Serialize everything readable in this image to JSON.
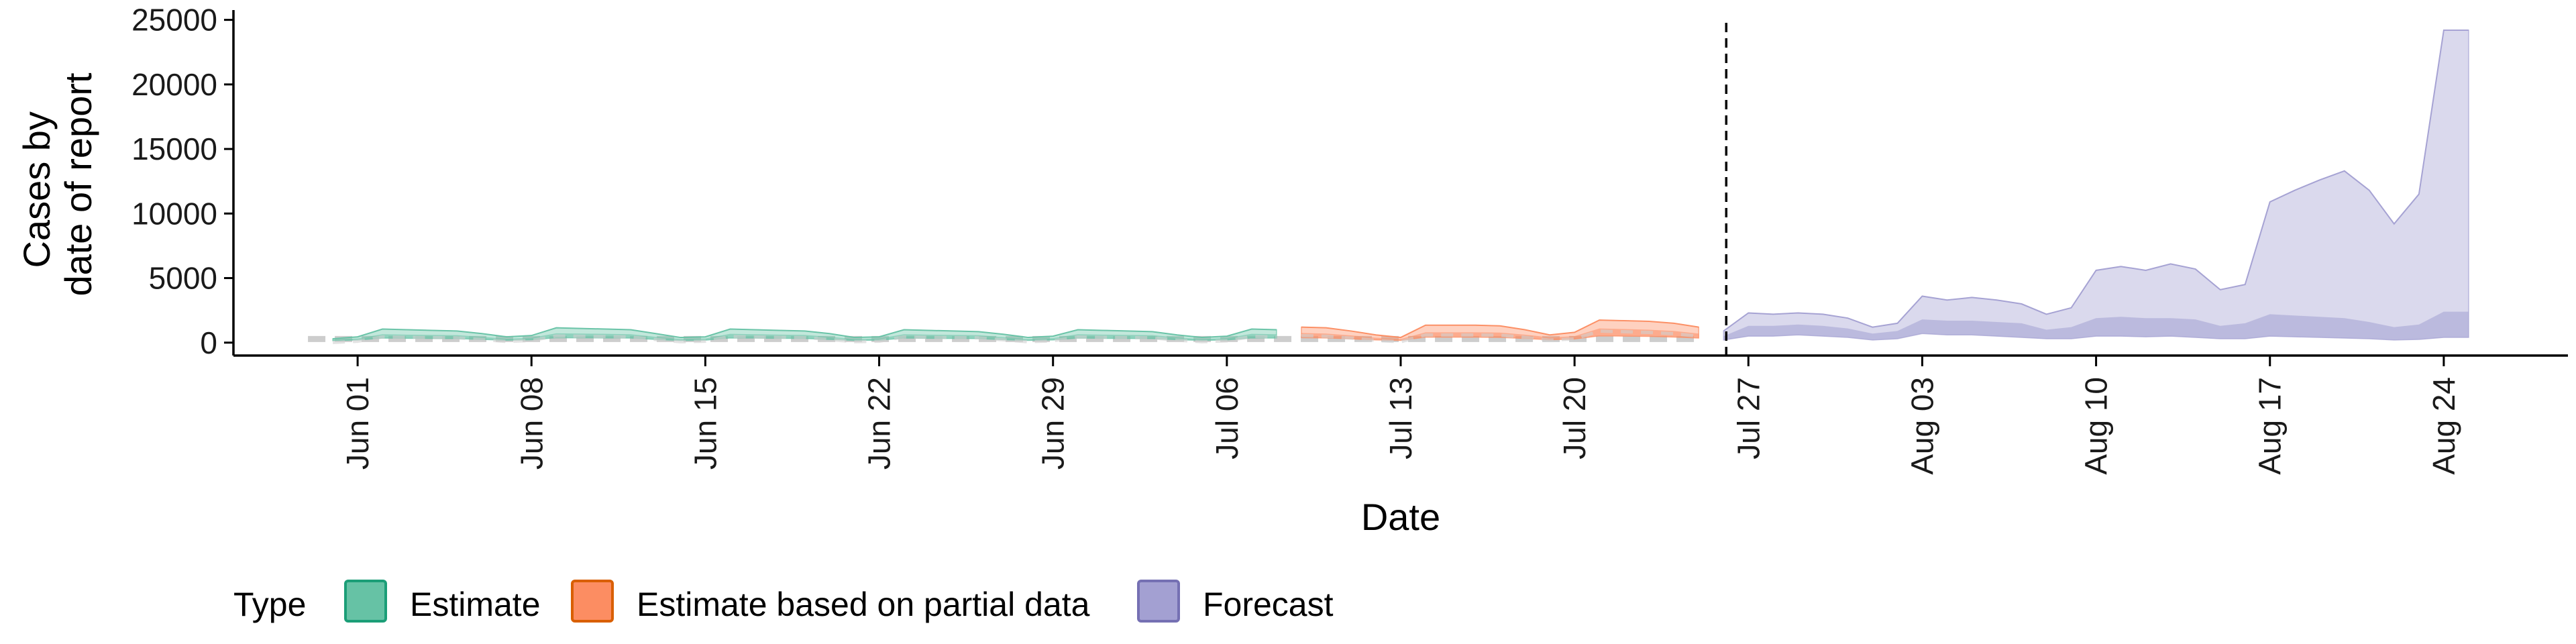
{
  "chart_data": {
    "type": "area",
    "xlabel": "Date",
    "ylabel_lines": [
      "Cases by",
      "date of report"
    ],
    "ylim": [
      -1000,
      25500
    ],
    "xlim": [
      "2020-05-27",
      "2020-08-29"
    ],
    "y_ticks": [
      0,
      5000,
      10000,
      15000,
      20000,
      25000
    ],
    "y_tick_labels": [
      "0",
      "5000",
      "10000",
      "15000",
      "20000",
      "25000"
    ],
    "x_ticks": [
      "2020-06-01",
      "2020-06-08",
      "2020-06-15",
      "2020-06-22",
      "2020-06-29",
      "2020-07-06",
      "2020-07-13",
      "2020-07-20",
      "2020-07-27",
      "2020-08-03",
      "2020-08-10",
      "2020-08-17",
      "2020-08-24"
    ],
    "x_tick_labels": [
      "Jun 01",
      "Jun 08",
      "Jun 15",
      "Jun 22",
      "Jun 29",
      "Jul 06",
      "Jul 13",
      "Jul 20",
      "Jul 27",
      "Aug 03",
      "Aug 10",
      "Aug 17",
      "Aug 24"
    ],
    "forecast_start": "2020-07-26",
    "legend": {
      "position": "bottom",
      "title": "Type",
      "items": [
        {
          "label": "Estimate",
          "color": "#66C2A5",
          "edge": "#1B9E77"
        },
        {
          "label": "Estimate based on partial data",
          "color": "#FC8D62",
          "edge": "#D95F02"
        },
        {
          "label": "Forecast",
          "color": "#A3A0D2",
          "edge": "#7570B3"
        }
      ]
    },
    "series": [
      {
        "name": "Estimate",
        "color": "#66C2A5",
        "dates": [
          "2020-05-31",
          "2020-06-01",
          "2020-06-02",
          "2020-06-03",
          "2020-06-04",
          "2020-06-05",
          "2020-06-06",
          "2020-06-07",
          "2020-06-08",
          "2020-06-09",
          "2020-06-10",
          "2020-06-11",
          "2020-06-12",
          "2020-06-13",
          "2020-06-14",
          "2020-06-15",
          "2020-06-16",
          "2020-06-17",
          "2020-06-18",
          "2020-06-19",
          "2020-06-20",
          "2020-06-21",
          "2020-06-22",
          "2020-06-23",
          "2020-06-24",
          "2020-06-25",
          "2020-06-26",
          "2020-06-27",
          "2020-06-28",
          "2020-06-29",
          "2020-06-30",
          "2020-07-01",
          "2020-07-02",
          "2020-07-03",
          "2020-07-04",
          "2020-07-05",
          "2020-07-06",
          "2020-07-07",
          "2020-07-08"
        ],
        "upper": [
          300,
          450,
          1050,
          1000,
          950,
          900,
          700,
          450,
          550,
          1150,
          1100,
          1050,
          1000,
          700,
          400,
          450,
          1050,
          1000,
          950,
          900,
          700,
          400,
          450,
          1000,
          950,
          900,
          850,
          650,
          400,
          500,
          1000,
          950,
          900,
          850,
          600,
          400,
          500,
          1050,
          1000
        ],
        "mid": [
          220,
          320,
          650,
          620,
          600,
          580,
          450,
          300,
          380,
          720,
          700,
          680,
          650,
          450,
          280,
          320,
          680,
          650,
          620,
          600,
          450,
          280,
          320,
          650,
          620,
          600,
          580,
          420,
          280,
          350,
          650,
          620,
          600,
          580,
          400,
          280,
          350,
          680,
          650
        ],
        "lower": [
          150,
          200,
          350,
          330,
          320,
          310,
          250,
          180,
          220,
          380,
          370,
          360,
          350,
          250,
          160,
          190,
          360,
          350,
          330,
          320,
          250,
          170,
          190,
          350,
          330,
          320,
          310,
          230,
          170,
          210,
          350,
          330,
          320,
          310,
          230,
          170,
          210,
          360,
          350
        ]
      },
      {
        "name": "Estimate based on partial data",
        "color": "#FC8D62",
        "dates": [
          "2020-07-09",
          "2020-07-10",
          "2020-07-11",
          "2020-07-12",
          "2020-07-13",
          "2020-07-14",
          "2020-07-15",
          "2020-07-16",
          "2020-07-17",
          "2020-07-18",
          "2020-07-19",
          "2020-07-20",
          "2020-07-21",
          "2020-07-22",
          "2020-07-23",
          "2020-07-24",
          "2020-07-25"
        ],
        "upper": [
          1200,
          1150,
          900,
          600,
          400,
          1350,
          1350,
          1350,
          1300,
          1000,
          600,
          800,
          1750,
          1700,
          1650,
          1500,
          1200
        ],
        "mid": [
          750,
          700,
          560,
          380,
          280,
          800,
          800,
          800,
          780,
          620,
          400,
          500,
          1100,
          1050,
          1000,
          900,
          700
        ],
        "lower": [
          380,
          360,
          290,
          210,
          170,
          420,
          420,
          420,
          400,
          320,
          220,
          280,
          520,
          500,
          480,
          430,
          350
        ]
      },
      {
        "name": "Forecast",
        "color": "#A3A0D2",
        "dates": [
          "2020-07-26",
          "2020-07-27",
          "2020-07-28",
          "2020-07-29",
          "2020-07-30",
          "2020-07-31",
          "2020-08-01",
          "2020-08-02",
          "2020-08-03",
          "2020-08-04",
          "2020-08-05",
          "2020-08-06",
          "2020-08-07",
          "2020-08-08",
          "2020-08-09",
          "2020-08-10",
          "2020-08-11",
          "2020-08-12",
          "2020-08-13",
          "2020-08-14",
          "2020-08-15",
          "2020-08-16",
          "2020-08-17",
          "2020-08-18",
          "2020-08-19",
          "2020-08-20",
          "2020-08-21",
          "2020-08-22",
          "2020-08-23",
          "2020-08-24",
          "2020-08-25"
        ],
        "upper": [
          900,
          2300,
          2200,
          2300,
          2200,
          1900,
          1200,
          1500,
          3600,
          3300,
          3500,
          3300,
          3000,
          2200,
          2700,
          5600,
          5900,
          5600,
          6100,
          5700,
          4100,
          4500,
          10900,
          11800,
          12600,
          13300,
          11800,
          9200,
          11500,
          24200,
          24200
        ],
        "mid": [
          500,
          1300,
          1300,
          1400,
          1300,
          1100,
          700,
          900,
          1800,
          1700,
          1700,
          1600,
          1500,
          1000,
          1200,
          1900,
          2000,
          1900,
          1900,
          1800,
          1300,
          1500,
          2200,
          2100,
          2000,
          1900,
          1600,
          1200,
          1400,
          2400,
          2400
        ],
        "lower": [
          200,
          500,
          500,
          600,
          500,
          400,
          200,
          300,
          700,
          600,
          600,
          500,
          400,
          300,
          300,
          500,
          500,
          450,
          500,
          400,
          300,
          300,
          500,
          450,
          400,
          350,
          300,
          200,
          250,
          400,
          400
        ]
      }
    ]
  }
}
